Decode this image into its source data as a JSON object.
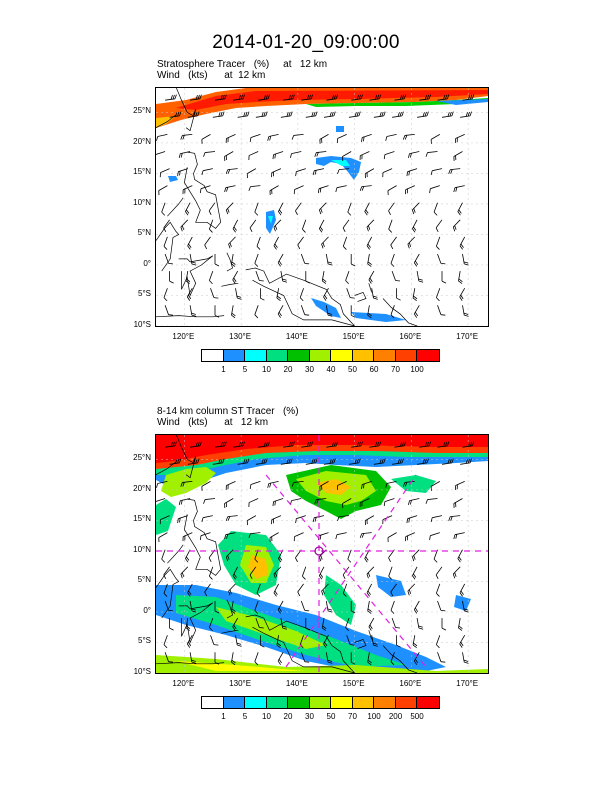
{
  "figure": {
    "title": "2014-01-20_09:00:00"
  },
  "panels": [
    {
      "id": "top",
      "subtitle1": "Stratosphere Tracer   (%)     at   12 km",
      "subtitle2": "Wind   (kts)      at  12 km",
      "lat_labels": [
        "25°N",
        "20°N",
        "15°N",
        "10°N",
        "5°N",
        "0°",
        "5°S",
        "10°S"
      ],
      "lon_labels": [
        "120°E",
        "130°E",
        "140°E",
        "150°E",
        "160°E",
        "170°E"
      ],
      "colorbar": {
        "levels": [
          "1",
          "5",
          "10",
          "20",
          "30",
          "40",
          "50",
          "60",
          "70",
          "100"
        ],
        "colors": [
          "#ffffff",
          "#1e90ff",
          "#00ffff",
          "#00e080",
          "#00c000",
          "#a0f000",
          "#ffff00",
          "#ffc000",
          "#ff8000",
          "#ff4000",
          "#ff0000"
        ]
      }
    },
    {
      "id": "bottom",
      "subtitle1": "8-14 km column ST Tracer   (%)",
      "subtitle2": "Wind   (kts)      at   12 km",
      "lat_labels": [
        "25°N",
        "20°N",
        "15°N",
        "10°N",
        "5°N",
        "0°",
        "5°S",
        "10°S"
      ],
      "lon_labels": [
        "120°E",
        "130°E",
        "140°E",
        "150°E",
        "160°E",
        "170°E"
      ],
      "colorbar": {
        "levels": [
          "1",
          "5",
          "10",
          "20",
          "30",
          "50",
          "70",
          "100",
          "200",
          "500"
        ],
        "colors": [
          "#ffffff",
          "#1e90ff",
          "#00ffff",
          "#00e080",
          "#00c000",
          "#a0f000",
          "#ffff00",
          "#ffc000",
          "#ff8000",
          "#ff4000",
          "#ff0000"
        ]
      }
    }
  ]
}
